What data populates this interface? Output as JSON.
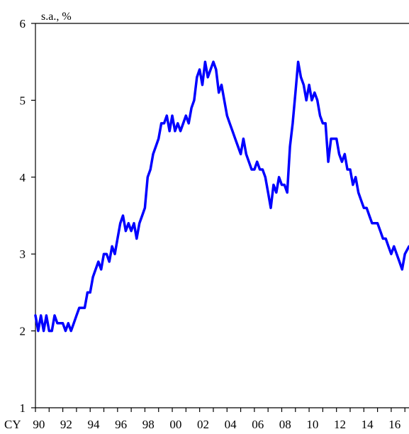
{
  "chart_data": {
    "type": "line",
    "title": "",
    "unit_label": "s.a., %",
    "x_prefix": "CY",
    "xlim": [
      1990,
      2017.3
    ],
    "ylim": [
      1,
      6
    ],
    "y_ticks": [
      1,
      2,
      3,
      4,
      5,
      6
    ],
    "x_ticks": [
      {
        "year": 1990,
        "label": "90"
      },
      {
        "year": 1992,
        "label": "92"
      },
      {
        "year": 1994,
        "label": "94"
      },
      {
        "year": 1996,
        "label": "96"
      },
      {
        "year": 1998,
        "label": "98"
      },
      {
        "year": 2000,
        "label": "00"
      },
      {
        "year": 2002,
        "label": "02"
      },
      {
        "year": 2004,
        "label": "04"
      },
      {
        "year": 2006,
        "label": "06"
      },
      {
        "year": 2008,
        "label": "08"
      },
      {
        "year": 2010,
        "label": "10"
      },
      {
        "year": 2012,
        "label": "12"
      },
      {
        "year": 2014,
        "label": "14"
      },
      {
        "year": 2016,
        "label": "16"
      }
    ],
    "grid": false,
    "legend": "none",
    "series": [
      {
        "color": "#0000ff",
        "points": [
          [
            1990.0,
            2.2
          ],
          [
            1990.2,
            2.0
          ],
          [
            1990.4,
            2.2
          ],
          [
            1990.6,
            2.0
          ],
          [
            1990.8,
            2.2
          ],
          [
            1991.0,
            2.0
          ],
          [
            1991.2,
            2.0
          ],
          [
            1991.4,
            2.2
          ],
          [
            1991.6,
            2.1
          ],
          [
            1991.8,
            2.1
          ],
          [
            1992.0,
            2.1
          ],
          [
            1992.2,
            2.0
          ],
          [
            1992.4,
            2.1
          ],
          [
            1992.6,
            2.0
          ],
          [
            1992.8,
            2.1
          ],
          [
            1993.0,
            2.2
          ],
          [
            1993.2,
            2.3
          ],
          [
            1993.4,
            2.3
          ],
          [
            1993.6,
            2.3
          ],
          [
            1993.8,
            2.5
          ],
          [
            1994.0,
            2.5
          ],
          [
            1994.2,
            2.7
          ],
          [
            1994.4,
            2.8
          ],
          [
            1994.6,
            2.9
          ],
          [
            1994.8,
            2.8
          ],
          [
            1995.0,
            3.0
          ],
          [
            1995.2,
            3.0
          ],
          [
            1995.4,
            2.9
          ],
          [
            1995.6,
            3.1
          ],
          [
            1995.8,
            3.0
          ],
          [
            1996.0,
            3.2
          ],
          [
            1996.2,
            3.4
          ],
          [
            1996.4,
            3.5
          ],
          [
            1996.6,
            3.3
          ],
          [
            1996.8,
            3.4
          ],
          [
            1997.0,
            3.3
          ],
          [
            1997.2,
            3.4
          ],
          [
            1997.4,
            3.2
          ],
          [
            1997.6,
            3.4
          ],
          [
            1997.8,
            3.5
          ],
          [
            1998.0,
            3.6
          ],
          [
            1998.2,
            4.0
          ],
          [
            1998.4,
            4.1
          ],
          [
            1998.6,
            4.3
          ],
          [
            1998.8,
            4.4
          ],
          [
            1999.0,
            4.5
          ],
          [
            1999.2,
            4.7
          ],
          [
            1999.4,
            4.7
          ],
          [
            1999.6,
            4.8
          ],
          [
            1999.8,
            4.6
          ],
          [
            2000.0,
            4.8
          ],
          [
            2000.2,
            4.6
          ],
          [
            2000.4,
            4.7
          ],
          [
            2000.6,
            4.6
          ],
          [
            2000.8,
            4.7
          ],
          [
            2001.0,
            4.8
          ],
          [
            2001.2,
            4.7
          ],
          [
            2001.4,
            4.9
          ],
          [
            2001.6,
            5.0
          ],
          [
            2001.8,
            5.3
          ],
          [
            2002.0,
            5.4
          ],
          [
            2002.2,
            5.2
          ],
          [
            2002.4,
            5.5
          ],
          [
            2002.6,
            5.3
          ],
          [
            2002.8,
            5.4
          ],
          [
            2003.0,
            5.5
          ],
          [
            2003.2,
            5.4
          ],
          [
            2003.4,
            5.1
          ],
          [
            2003.6,
            5.2
          ],
          [
            2003.8,
            5.0
          ],
          [
            2004.0,
            4.8
          ],
          [
            2004.2,
            4.7
          ],
          [
            2004.4,
            4.6
          ],
          [
            2004.6,
            4.5
          ],
          [
            2004.8,
            4.4
          ],
          [
            2005.0,
            4.3
          ],
          [
            2005.2,
            4.5
          ],
          [
            2005.4,
            4.3
          ],
          [
            2005.6,
            4.2
          ],
          [
            2005.8,
            4.1
          ],
          [
            2006.0,
            4.1
          ],
          [
            2006.2,
            4.2
          ],
          [
            2006.4,
            4.1
          ],
          [
            2006.6,
            4.1
          ],
          [
            2006.8,
            4.0
          ],
          [
            2007.0,
            3.8
          ],
          [
            2007.2,
            3.6
          ],
          [
            2007.4,
            3.9
          ],
          [
            2007.6,
            3.8
          ],
          [
            2007.8,
            4.0
          ],
          [
            2008.0,
            3.9
          ],
          [
            2008.2,
            3.9
          ],
          [
            2008.4,
            3.8
          ],
          [
            2008.6,
            4.4
          ],
          [
            2008.8,
            4.7
          ],
          [
            2009.0,
            5.1
          ],
          [
            2009.2,
            5.5
          ],
          [
            2009.4,
            5.3
          ],
          [
            2009.6,
            5.2
          ],
          [
            2009.8,
            5.0
          ],
          [
            2010.0,
            5.2
          ],
          [
            2010.2,
            5.0
          ],
          [
            2010.4,
            5.1
          ],
          [
            2010.6,
            5.0
          ],
          [
            2010.8,
            4.8
          ],
          [
            2011.0,
            4.7
          ],
          [
            2011.2,
            4.7
          ],
          [
            2011.4,
            4.2
          ],
          [
            2011.6,
            4.5
          ],
          [
            2011.8,
            4.5
          ],
          [
            2012.0,
            4.5
          ],
          [
            2012.2,
            4.3
          ],
          [
            2012.4,
            4.2
          ],
          [
            2012.6,
            4.3
          ],
          [
            2012.8,
            4.1
          ],
          [
            2013.0,
            4.1
          ],
          [
            2013.2,
            3.9
          ],
          [
            2013.4,
            4.0
          ],
          [
            2013.6,
            3.8
          ],
          [
            2013.8,
            3.7
          ],
          [
            2014.0,
            3.6
          ],
          [
            2014.2,
            3.6
          ],
          [
            2014.4,
            3.5
          ],
          [
            2014.6,
            3.4
          ],
          [
            2014.8,
            3.4
          ],
          [
            2015.0,
            3.4
          ],
          [
            2015.2,
            3.3
          ],
          [
            2015.4,
            3.2
          ],
          [
            2015.6,
            3.2
          ],
          [
            2015.8,
            3.1
          ],
          [
            2016.0,
            3.0
          ],
          [
            2016.2,
            3.1
          ],
          [
            2016.4,
            3.0
          ],
          [
            2016.6,
            2.9
          ],
          [
            2016.8,
            2.8
          ],
          [
            2017.0,
            3.0
          ],
          [
            2017.3,
            3.1
          ]
        ]
      }
    ]
  }
}
